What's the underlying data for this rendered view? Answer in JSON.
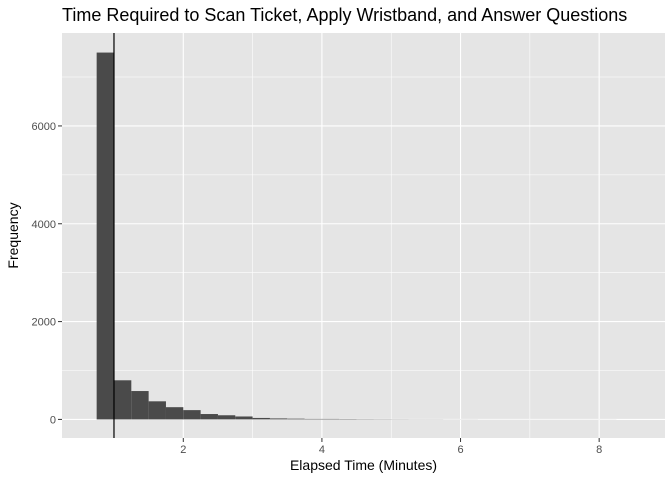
{
  "chart_data": {
    "type": "bar",
    "subtype": "histogram",
    "title": "Time Required to Scan Ticket, Apply Wristband, and Answer Questions",
    "xlabel": "Elapsed Time (Minutes)",
    "ylabel": "Frequency",
    "xlim": [
      0.25,
      8.95
    ],
    "ylim": [
      -380,
      7900
    ],
    "x_ticks": [
      2,
      4,
      6,
      8
    ],
    "x_tick_labels": [
      "2",
      "4",
      "6",
      "8"
    ],
    "y_ticks": [
      0,
      2000,
      4000,
      6000
    ],
    "y_tick_labels": [
      "0",
      "2000",
      "4000",
      "6000"
    ],
    "bin_width": 0.25,
    "bin_starts": [
      0.5,
      0.75,
      1.0,
      1.25,
      1.5,
      1.75,
      2.0,
      2.25,
      2.5,
      2.75,
      3.0,
      3.25,
      3.5,
      3.75,
      4.0,
      4.25,
      4.5,
      4.75,
      5.0,
      5.25,
      5.5,
      5.75,
      6.0,
      6.25,
      6.5,
      6.75,
      7.0,
      7.25,
      7.5,
      7.75,
      8.0
    ],
    "frequencies": [
      0,
      7500,
      800,
      580,
      370,
      250,
      190,
      110,
      85,
      60,
      30,
      20,
      15,
      10,
      10,
      8,
      6,
      5,
      4,
      3,
      3,
      2,
      2,
      1,
      1,
      1,
      1,
      1,
      1,
      1,
      1
    ],
    "reference_line_x": 1.0,
    "grid": true,
    "colors": {
      "panel_background": "#e5e5e5",
      "grid_line": "#ffffff",
      "bar_fill": "#4a4a4a",
      "reference_line": "#000000"
    }
  }
}
